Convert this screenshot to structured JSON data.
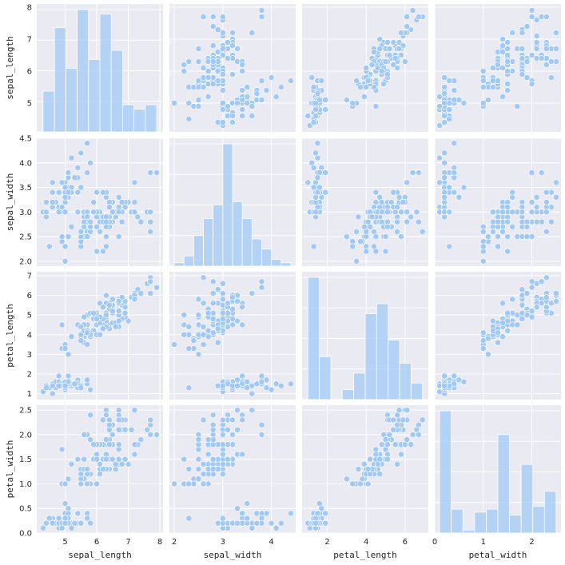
{
  "chart_data": {
    "type": "scatter",
    "variables": [
      "sepal_length",
      "sepal_width",
      "petal_length",
      "petal_width"
    ],
    "axis_ranges": {
      "sepal_length": [
        4.1,
        8.1
      ],
      "sepal_width": [
        1.9,
        4.5
      ],
      "petal_length": [
        0.7,
        7.2
      ],
      "petal_width": [
        0.0,
        2.6
      ]
    },
    "ticks": {
      "sepal_length": [
        5,
        6,
        7,
        8
      ],
      "sepal_width_y": [
        2.0,
        2.5,
        3.0,
        3.5,
        4.0,
        4.5
      ],
      "sepal_width_x": [
        2,
        3,
        4
      ],
      "petal_length_y": [
        1,
        2,
        3,
        4,
        5,
        6,
        7
      ],
      "petal_length_x": [
        2,
        4,
        6
      ],
      "petal_width_y": [
        0.0,
        0.5,
        1.0,
        1.5,
        2.0,
        2.5
      ],
      "petal_width_x": [
        0,
        1,
        2
      ]
    },
    "tick_labels": {
      "sepal_length": [
        "5",
        "6",
        "7",
        "8"
      ],
      "sepal_width_y": [
        "2.0",
        "2.5",
        "3.0",
        "3.5",
        "4.0",
        "4.5"
      ],
      "sepal_width_x": [
        "2",
        "3",
        "4"
      ],
      "petal_length_y": [
        "1",
        "2",
        "3",
        "4",
        "5",
        "6",
        "7"
      ],
      "petal_length_x": [
        "2",
        "4",
        "6"
      ],
      "petal_width_y": [
        "0.0",
        "0.5",
        "1.0",
        "1.5",
        "2.0",
        "2.5"
      ],
      "petal_width_x": [
        "0",
        "1",
        "2"
      ]
    },
    "histograms": {
      "sepal_length": {
        "edges": [
          4.3,
          4.66,
          5.02,
          5.38,
          5.74,
          6.1,
          6.46,
          6.82,
          7.18,
          7.54,
          7.9
        ],
        "counts": [
          9,
          23,
          14,
          27,
          16,
          26,
          18,
          6,
          5,
          6
        ]
      },
      "sepal_width": {
        "edges": [
          2.0,
          2.2,
          2.4,
          2.6,
          2.8,
          3.0,
          3.2,
          3.4,
          3.6,
          3.8,
          4.0,
          4.2,
          4.4
        ],
        "counts": [
          1,
          3,
          9,
          14,
          18,
          36,
          19,
          14,
          8,
          5,
          2,
          1
        ]
      },
      "petal_length": {
        "edges": [
          1.0,
          1.59,
          2.18,
          2.77,
          3.36,
          3.95,
          4.54,
          5.13,
          5.72,
          6.31,
          6.9
        ],
        "counts": [
          37,
          13,
          0,
          3,
          8,
          26,
          29,
          18,
          11,
          5
        ]
      },
      "petal_width": {
        "edges": [
          0.1,
          0.34,
          0.58,
          0.82,
          1.06,
          1.3,
          1.54,
          1.78,
          2.02,
          2.26,
          2.5
        ],
        "counts": [
          41,
          8,
          1,
          7,
          8,
          33,
          6,
          23,
          9,
          14
        ]
      }
    },
    "observations": [
      [
        5.1,
        3.5,
        1.4,
        0.2
      ],
      [
        4.9,
        3.0,
        1.4,
        0.2
      ],
      [
        4.7,
        3.2,
        1.3,
        0.2
      ],
      [
        4.6,
        3.1,
        1.5,
        0.2
      ],
      [
        5.0,
        3.6,
        1.4,
        0.2
      ],
      [
        5.4,
        3.9,
        1.7,
        0.4
      ],
      [
        4.6,
        3.4,
        1.4,
        0.3
      ],
      [
        5.0,
        3.4,
        1.5,
        0.2
      ],
      [
        4.4,
        2.9,
        1.4,
        0.2
      ],
      [
        4.9,
        3.1,
        1.5,
        0.1
      ],
      [
        5.4,
        3.7,
        1.5,
        0.2
      ],
      [
        4.8,
        3.4,
        1.6,
        0.2
      ],
      [
        4.8,
        3.0,
        1.4,
        0.1
      ],
      [
        4.3,
        3.0,
        1.1,
        0.1
      ],
      [
        5.8,
        4.0,
        1.2,
        0.2
      ],
      [
        5.7,
        4.4,
        1.5,
        0.4
      ],
      [
        5.4,
        3.9,
        1.3,
        0.4
      ],
      [
        5.1,
        3.5,
        1.4,
        0.3
      ],
      [
        5.7,
        3.8,
        1.7,
        0.3
      ],
      [
        5.1,
        3.8,
        1.5,
        0.3
      ],
      [
        5.4,
        3.4,
        1.7,
        0.2
      ],
      [
        5.1,
        3.7,
        1.5,
        0.4
      ],
      [
        4.6,
        3.6,
        1.0,
        0.2
      ],
      [
        5.1,
        3.3,
        1.7,
        0.5
      ],
      [
        4.8,
        3.4,
        1.9,
        0.2
      ],
      [
        5.0,
        3.0,
        1.6,
        0.2
      ],
      [
        5.0,
        3.4,
        1.6,
        0.4
      ],
      [
        5.2,
        3.5,
        1.5,
        0.2
      ],
      [
        5.2,
        3.4,
        1.4,
        0.2
      ],
      [
        4.7,
        3.2,
        1.6,
        0.2
      ],
      [
        4.8,
        3.1,
        1.6,
        0.2
      ],
      [
        5.4,
        3.4,
        1.5,
        0.4
      ],
      [
        5.2,
        4.1,
        1.5,
        0.1
      ],
      [
        5.5,
        4.2,
        1.4,
        0.2
      ],
      [
        4.9,
        3.1,
        1.5,
        0.2
      ],
      [
        5.0,
        3.2,
        1.2,
        0.2
      ],
      [
        5.5,
        3.5,
        1.3,
        0.2
      ],
      [
        4.9,
        3.6,
        1.4,
        0.1
      ],
      [
        4.4,
        3.0,
        1.3,
        0.2
      ],
      [
        5.1,
        3.4,
        1.5,
        0.2
      ],
      [
        5.0,
        3.5,
        1.3,
        0.3
      ],
      [
        4.5,
        2.3,
        1.3,
        0.3
      ],
      [
        4.4,
        3.2,
        1.3,
        0.2
      ],
      [
        5.0,
        3.5,
        1.6,
        0.6
      ],
      [
        5.1,
        3.8,
        1.9,
        0.4
      ],
      [
        4.8,
        3.0,
        1.4,
        0.3
      ],
      [
        5.1,
        3.8,
        1.6,
        0.2
      ],
      [
        4.6,
        3.2,
        1.4,
        0.2
      ],
      [
        5.3,
        3.7,
        1.5,
        0.2
      ],
      [
        5.0,
        3.3,
        1.4,
        0.2
      ],
      [
        7.0,
        3.2,
        4.7,
        1.4
      ],
      [
        6.4,
        3.2,
        4.5,
        1.5
      ],
      [
        6.9,
        3.1,
        4.9,
        1.5
      ],
      [
        5.5,
        2.3,
        4.0,
        1.3
      ],
      [
        6.5,
        2.8,
        4.6,
        1.5
      ],
      [
        5.7,
        2.8,
        4.5,
        1.3
      ],
      [
        6.3,
        3.3,
        4.7,
        1.6
      ],
      [
        4.9,
        2.4,
        3.3,
        1.0
      ],
      [
        6.6,
        2.9,
        4.6,
        1.3
      ],
      [
        5.2,
        2.7,
        3.9,
        1.4
      ],
      [
        5.0,
        2.0,
        3.5,
        1.0
      ],
      [
        5.9,
        3.0,
        4.2,
        1.5
      ],
      [
        6.0,
        2.2,
        4.0,
        1.0
      ],
      [
        6.1,
        2.9,
        4.7,
        1.4
      ],
      [
        5.6,
        2.9,
        3.6,
        1.3
      ],
      [
        6.7,
        3.1,
        4.4,
        1.4
      ],
      [
        5.6,
        3.0,
        4.5,
        1.5
      ],
      [
        5.8,
        2.7,
        4.1,
        1.0
      ],
      [
        6.2,
        2.2,
        4.5,
        1.5
      ],
      [
        5.6,
        2.5,
        3.9,
        1.1
      ],
      [
        5.9,
        3.2,
        4.8,
        1.8
      ],
      [
        6.1,
        2.8,
        4.0,
        1.3
      ],
      [
        6.3,
        2.5,
        4.9,
        1.5
      ],
      [
        6.1,
        2.8,
        4.7,
        1.2
      ],
      [
        6.4,
        2.9,
        4.3,
        1.3
      ],
      [
        6.6,
        3.0,
        4.4,
        1.4
      ],
      [
        6.8,
        2.8,
        4.8,
        1.4
      ],
      [
        6.7,
        3.0,
        5.0,
        1.7
      ],
      [
        6.0,
        2.9,
        4.5,
        1.5
      ],
      [
        5.7,
        2.6,
        3.5,
        1.0
      ],
      [
        5.5,
        2.4,
        3.8,
        1.1
      ],
      [
        5.5,
        2.4,
        3.7,
        1.0
      ],
      [
        5.8,
        2.7,
        3.9,
        1.2
      ],
      [
        6.0,
        2.7,
        5.1,
        1.6
      ],
      [
        5.4,
        3.0,
        4.5,
        1.5
      ],
      [
        6.0,
        3.4,
        4.5,
        1.6
      ],
      [
        6.7,
        3.1,
        4.7,
        1.5
      ],
      [
        6.3,
        2.3,
        4.4,
        1.3
      ],
      [
        5.6,
        3.0,
        4.1,
        1.3
      ],
      [
        5.5,
        2.5,
        4.0,
        1.3
      ],
      [
        5.5,
        2.6,
        4.4,
        1.2
      ],
      [
        6.1,
        3.0,
        4.6,
        1.4
      ],
      [
        5.8,
        2.6,
        4.0,
        1.2
      ],
      [
        5.0,
        2.3,
        3.3,
        1.0
      ],
      [
        5.6,
        2.7,
        4.2,
        1.3
      ],
      [
        5.7,
        3.0,
        4.2,
        1.2
      ],
      [
        5.7,
        2.9,
        4.2,
        1.3
      ],
      [
        6.2,
        2.9,
        4.3,
        1.3
      ],
      [
        5.1,
        2.5,
        3.0,
        1.1
      ],
      [
        5.7,
        2.8,
        4.1,
        1.3
      ],
      [
        6.3,
        3.3,
        6.0,
        2.5
      ],
      [
        5.8,
        2.7,
        5.1,
        1.9
      ],
      [
        7.1,
        3.0,
        5.9,
        2.1
      ],
      [
        6.3,
        2.9,
        5.6,
        1.8
      ],
      [
        6.5,
        3.0,
        5.8,
        2.2
      ],
      [
        7.6,
        3.0,
        6.6,
        2.1
      ],
      [
        4.9,
        2.5,
        4.5,
        1.7
      ],
      [
        7.3,
        2.9,
        6.3,
        1.8
      ],
      [
        6.7,
        2.5,
        5.8,
        1.8
      ],
      [
        7.2,
        3.6,
        6.1,
        2.5
      ],
      [
        6.5,
        3.2,
        5.1,
        2.0
      ],
      [
        6.4,
        2.7,
        5.3,
        1.9
      ],
      [
        6.8,
        3.0,
        5.5,
        2.1
      ],
      [
        5.7,
        2.5,
        5.0,
        2.0
      ],
      [
        5.8,
        2.8,
        5.1,
        2.4
      ],
      [
        6.4,
        3.2,
        5.3,
        2.3
      ],
      [
        6.5,
        3.0,
        5.5,
        1.8
      ],
      [
        7.7,
        3.8,
        6.7,
        2.2
      ],
      [
        7.7,
        2.6,
        6.9,
        2.3
      ],
      [
        6.0,
        2.2,
        5.0,
        1.5
      ],
      [
        6.9,
        3.2,
        5.7,
        2.3
      ],
      [
        5.6,
        2.8,
        4.9,
        2.0
      ],
      [
        7.7,
        2.8,
        6.7,
        2.0
      ],
      [
        6.3,
        2.7,
        4.9,
        1.8
      ],
      [
        6.7,
        3.3,
        5.7,
        2.1
      ],
      [
        7.2,
        3.2,
        6.0,
        1.8
      ],
      [
        6.2,
        2.8,
        4.8,
        1.8
      ],
      [
        6.1,
        3.0,
        4.9,
        1.8
      ],
      [
        6.4,
        2.8,
        5.6,
        2.1
      ],
      [
        7.2,
        3.0,
        5.8,
        1.6
      ],
      [
        7.4,
        2.8,
        6.1,
        1.9
      ],
      [
        7.9,
        3.8,
        6.4,
        2.0
      ],
      [
        6.4,
        2.8,
        5.6,
        2.2
      ],
      [
        6.3,
        2.8,
        5.1,
        1.5
      ],
      [
        6.1,
        2.6,
        5.6,
        1.4
      ],
      [
        7.7,
        3.0,
        6.1,
        2.3
      ],
      [
        6.3,
        3.4,
        5.6,
        2.4
      ],
      [
        6.4,
        3.1,
        5.5,
        1.8
      ],
      [
        6.0,
        3.0,
        4.8,
        1.8
      ],
      [
        6.9,
        3.1,
        5.4,
        2.1
      ],
      [
        6.7,
        3.1,
        5.6,
        2.4
      ],
      [
        6.9,
        3.1,
        5.1,
        2.3
      ],
      [
        5.8,
        2.7,
        5.1,
        1.9
      ],
      [
        6.8,
        3.2,
        5.9,
        2.3
      ],
      [
        6.7,
        3.3,
        5.7,
        2.5
      ],
      [
        6.7,
        3.0,
        5.2,
        2.3
      ],
      [
        6.3,
        2.5,
        5.0,
        1.9
      ],
      [
        6.5,
        3.0,
        5.2,
        2.0
      ],
      [
        6.2,
        3.4,
        5.4,
        2.3
      ],
      [
        5.9,
        3.0,
        5.1,
        1.8
      ]
    ],
    "colors": {
      "marker": "#a1c9f4",
      "panel_background": "#eaeaf2",
      "grid": "#ffffff"
    },
    "grid": true
  }
}
